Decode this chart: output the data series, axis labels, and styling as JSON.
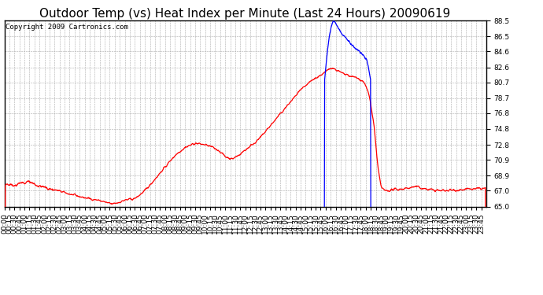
{
  "title": "Outdoor Temp (vs) Heat Index per Minute (Last 24 Hours) 20090619",
  "copyright_text": "Copyright 2009 Cartronics.com",
  "ylim": [
    65.0,
    88.5
  ],
  "yticks": [
    65.0,
    67.0,
    68.9,
    70.9,
    72.8,
    74.8,
    76.8,
    78.7,
    80.7,
    82.6,
    84.6,
    86.5,
    88.5
  ],
  "background_color": "#ffffff",
  "grid_color": "#aaaaaa",
  "red_color": "#ff0000",
  "blue_color": "#0000ff",
  "title_fontsize": 11,
  "copyright_fontsize": 6.5,
  "tick_fontsize": 6.5,
  "x_tick_interval": 15,
  "total_minutes": 1440
}
